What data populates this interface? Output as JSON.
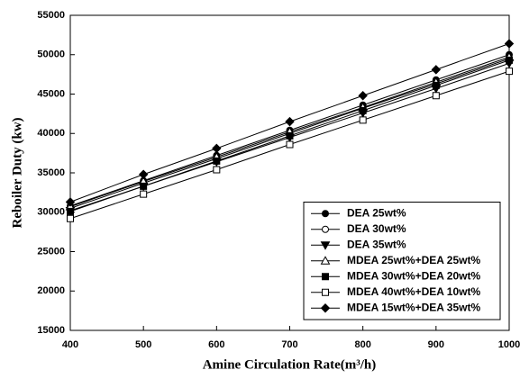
{
  "chart_data": {
    "type": "line",
    "x_label": "Amine Circulation Rate(m³/h)",
    "y_label": "Reboiler Duty (kw)",
    "x": [
      400,
      500,
      600,
      700,
      800,
      900,
      1000
    ],
    "xlim": [
      400,
      1000
    ],
    "xticks": [
      400,
      500,
      600,
      700,
      800,
      900,
      1000
    ],
    "ylim": [
      15000,
      55000
    ],
    "yticks": [
      15000,
      20000,
      25000,
      30000,
      35000,
      40000,
      45000,
      50000,
      55000
    ],
    "legend_position": "lower right",
    "series": [
      {
        "name": "DEA 25wt%",
        "color": "#000000",
        "marker": "circle",
        "filled": true,
        "values": [
          30800,
          34000,
          37200,
          40400,
          43600,
          46800,
          50000
        ]
      },
      {
        "name": "DEA 30wt%",
        "color": "#000000",
        "marker": "circle",
        "filled": false,
        "values": [
          30500,
          33700,
          36800,
          40000,
          43200,
          46300,
          49500
        ]
      },
      {
        "name": "DEA 35wt%",
        "color": "#000000",
        "marker": "triangle-down",
        "filled": true,
        "values": [
          30200,
          33300,
          36400,
          39500,
          42600,
          45700,
          48900
        ]
      },
      {
        "name": "MDEA 25wt%+DEA 25wt%",
        "color": "#000000",
        "marker": "triangle-up",
        "filled": false,
        "values": [
          30700,
          33900,
          37000,
          40200,
          43300,
          46500,
          49700
        ]
      },
      {
        "name": "MDEA 30wt%+DEA 20wt%",
        "color": "#000000",
        "marker": "square",
        "filled": true,
        "values": [
          30100,
          33300,
          36500,
          39700,
          42900,
          46100,
          49300
        ]
      },
      {
        "name": "MDEA 40wt%+DEA 10wt%",
        "color": "#000000",
        "marker": "square",
        "filled": false,
        "values": [
          29200,
          32300,
          35400,
          38600,
          41700,
          44800,
          47900
        ]
      },
      {
        "name": "MDEA 15wt%+DEA 35wt%",
        "color": "#000000",
        "marker": "diamond",
        "filled": true,
        "values": [
          31300,
          34800,
          38100,
          41500,
          44800,
          48100,
          51400
        ]
      }
    ]
  }
}
